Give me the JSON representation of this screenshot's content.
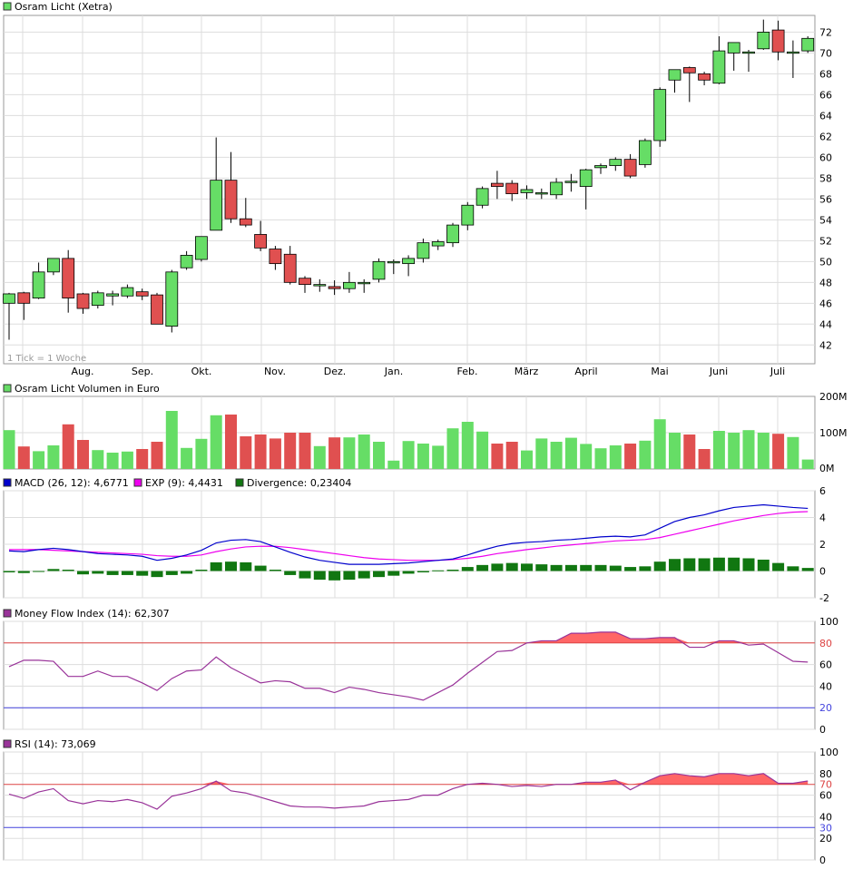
{
  "colors": {
    "up": "#66dd66",
    "down": "#e05050",
    "grid": "#dddddd",
    "macd": "#0000cc",
    "exp": "#ee00ee",
    "divergence": "#117711",
    "indicator_line": "#993399",
    "over": "#ff6666",
    "upper_line": "#dd4444",
    "lower_line": "#4444dd"
  },
  "x_ticks": [
    "Aug.",
    "Sep.",
    "Okt.",
    "Nov.",
    "Dez.",
    "Jan.",
    "Feb.",
    "März",
    "April",
    "Mai",
    "Juni",
    "Juli"
  ],
  "price_panel": {
    "title": "Osram Licht (Xetra)",
    "note": "1 Tick = 1 Woche",
    "y_ticks": [
      42,
      44,
      46,
      48,
      50,
      52,
      54,
      56,
      58,
      60,
      62,
      64,
      66,
      68,
      70,
      72
    ],
    "ylim": [
      40.2,
      73.6
    ]
  },
  "volume_panel": {
    "title": "Osram Licht Volumen in Euro",
    "y_ticks": [
      "0M",
      "100M",
      "200M"
    ],
    "ylim": [
      0,
      200
    ]
  },
  "macd_panel": {
    "legend": {
      "macd": "MACD (26, 12): 4,6771",
      "exp": "EXP (9): 4,4431",
      "divergence": "Divergence: 0,23404"
    },
    "y_ticks": [
      "-2",
      "0",
      "2",
      "4",
      "6"
    ],
    "ylim": [
      -2,
      6
    ]
  },
  "mfi_panel": {
    "title": "Money Flow Index (14): 62,307",
    "y_ticks": [
      "0",
      "20",
      "40",
      "60",
      "80",
      "100"
    ],
    "upper_label": "80",
    "lower_label": "20",
    "upper": 80,
    "lower": 20,
    "ylim": [
      0,
      100
    ]
  },
  "rsi_panel": {
    "title": "RSI (14): 73,069",
    "y_ticks": [
      "0",
      "20",
      "40",
      "60",
      "80",
      "100"
    ],
    "upper_label": "70",
    "lower_label": "30",
    "upper": 70,
    "lower": 30,
    "ylim": [
      0,
      100
    ]
  },
  "chart_data": {
    "type": "candlestick",
    "title": "Osram Licht (Xetra)",
    "interval": "1 Tick = 1 Woche",
    "candles": [
      {
        "o": 46.0,
        "h": 47.0,
        "l": 42.5,
        "c": 46.9
      },
      {
        "o": 47.0,
        "h": 47.1,
        "l": 44.4,
        "c": 46.0
      },
      {
        "o": 46.5,
        "h": 49.9,
        "l": 46.4,
        "c": 49.0
      },
      {
        "o": 49.0,
        "h": 50.3,
        "l": 48.7,
        "c": 50.3
      },
      {
        "o": 50.3,
        "h": 51.1,
        "l": 45.1,
        "c": 46.5
      },
      {
        "o": 46.9,
        "h": 47.0,
        "l": 45.0,
        "c": 45.5
      },
      {
        "o": 45.8,
        "h": 47.2,
        "l": 45.5,
        "c": 47.0
      },
      {
        "o": 46.7,
        "h": 47.2,
        "l": 45.8,
        "c": 46.9
      },
      {
        "o": 46.7,
        "h": 47.8,
        "l": 46.5,
        "c": 47.5
      },
      {
        "o": 47.1,
        "h": 47.4,
        "l": 46.3,
        "c": 46.7
      },
      {
        "o": 46.8,
        "h": 47.0,
        "l": 44.0,
        "c": 44.0
      },
      {
        "o": 43.8,
        "h": 49.2,
        "l": 43.2,
        "c": 49.0
      },
      {
        "o": 49.4,
        "h": 51.0,
        "l": 49.2,
        "c": 50.6
      },
      {
        "o": 50.2,
        "h": 52.4,
        "l": 50.0,
        "c": 52.4
      },
      {
        "o": 53.0,
        "h": 61.9,
        "l": 53.0,
        "c": 57.8
      },
      {
        "o": 57.8,
        "h": 60.5,
        "l": 53.7,
        "c": 54.1
      },
      {
        "o": 54.1,
        "h": 56.1,
        "l": 53.3,
        "c": 53.5
      },
      {
        "o": 52.6,
        "h": 53.9,
        "l": 51.0,
        "c": 51.3
      },
      {
        "o": 51.2,
        "h": 51.5,
        "l": 49.2,
        "c": 49.8
      },
      {
        "o": 50.7,
        "h": 51.5,
        "l": 47.8,
        "c": 48.0
      },
      {
        "o": 48.4,
        "h": 48.6,
        "l": 47.0,
        "c": 47.8
      },
      {
        "o": 47.8,
        "h": 48.3,
        "l": 47.1,
        "c": 47.8
      },
      {
        "o": 47.6,
        "h": 48.2,
        "l": 46.8,
        "c": 47.4
      },
      {
        "o": 47.4,
        "h": 49.0,
        "l": 47.0,
        "c": 48.0
      },
      {
        "o": 47.9,
        "h": 48.3,
        "l": 47.0,
        "c": 48.0
      },
      {
        "o": 48.3,
        "h": 50.3,
        "l": 48.0,
        "c": 50.0
      },
      {
        "o": 49.9,
        "h": 50.2,
        "l": 48.8,
        "c": 50.0
      },
      {
        "o": 49.8,
        "h": 50.6,
        "l": 48.6,
        "c": 50.3
      },
      {
        "o": 50.3,
        "h": 52.2,
        "l": 49.9,
        "c": 51.8
      },
      {
        "o": 51.5,
        "h": 52.1,
        "l": 51.1,
        "c": 51.9
      },
      {
        "o": 51.8,
        "h": 53.7,
        "l": 51.4,
        "c": 53.5
      },
      {
        "o": 53.5,
        "h": 55.7,
        "l": 53.0,
        "c": 55.4
      },
      {
        "o": 55.4,
        "h": 57.2,
        "l": 55.1,
        "c": 57.0
      },
      {
        "o": 57.5,
        "h": 58.7,
        "l": 56.0,
        "c": 57.2
      },
      {
        "o": 57.5,
        "h": 57.8,
        "l": 55.8,
        "c": 56.5
      },
      {
        "o": 56.6,
        "h": 57.3,
        "l": 56.0,
        "c": 56.9
      },
      {
        "o": 56.6,
        "h": 57.0,
        "l": 56.0,
        "c": 56.6
      },
      {
        "o": 56.4,
        "h": 58.0,
        "l": 56.0,
        "c": 57.6
      },
      {
        "o": 57.6,
        "h": 58.4,
        "l": 56.7,
        "c": 57.7
      },
      {
        "o": 57.2,
        "h": 58.9,
        "l": 55.0,
        "c": 58.8
      },
      {
        "o": 59.0,
        "h": 59.4,
        "l": 58.4,
        "c": 59.2
      },
      {
        "o": 59.2,
        "h": 60.0,
        "l": 58.7,
        "c": 59.8
      },
      {
        "o": 59.8,
        "h": 60.3,
        "l": 58.0,
        "c": 58.2
      },
      {
        "o": 59.3,
        "h": 61.8,
        "l": 59.0,
        "c": 61.6
      },
      {
        "o": 61.6,
        "h": 66.7,
        "l": 61.0,
        "c": 66.5
      },
      {
        "o": 67.4,
        "h": 68.4,
        "l": 66.2,
        "c": 68.4
      },
      {
        "o": 68.6,
        "h": 68.7,
        "l": 65.3,
        "c": 68.1
      },
      {
        "o": 68.0,
        "h": 68.2,
        "l": 66.9,
        "c": 67.4
      },
      {
        "o": 67.1,
        "h": 71.6,
        "l": 67.0,
        "c": 70.2
      },
      {
        "o": 70.0,
        "h": 71.0,
        "l": 68.3,
        "c": 71.0
      },
      {
        "o": 70.0,
        "h": 70.3,
        "l": 68.2,
        "c": 70.1
      },
      {
        "o": 70.4,
        "h": 73.2,
        "l": 70.3,
        "c": 72.0
      },
      {
        "o": 72.2,
        "h": 73.1,
        "l": 69.3,
        "c": 70.1
      },
      {
        "o": 70.1,
        "h": 71.2,
        "l": 67.6,
        "c": 70.1
      },
      {
        "o": 70.2,
        "h": 71.6,
        "l": 70.0,
        "c": 71.4
      }
    ],
    "volume_millions": [
      107,
      62,
      49,
      65,
      123,
      80,
      52,
      45,
      48,
      55,
      75,
      160,
      58,
      83,
      148,
      150,
      90,
      95,
      84,
      100,
      100,
      63,
      87,
      87,
      95,
      75,
      23,
      77,
      70,
      64,
      112,
      130,
      103,
      70,
      75,
      51,
      84,
      75,
      86,
      69,
      57,
      65,
      70,
      78,
      137,
      100,
      95,
      55,
      105,
      100,
      107,
      100,
      97,
      88,
      26
    ],
    "macd": [
      1.5,
      1.45,
      1.6,
      1.7,
      1.6,
      1.45,
      1.3,
      1.25,
      1.2,
      1.1,
      0.8,
      0.95,
      1.2,
      1.55,
      2.1,
      2.3,
      2.35,
      2.2,
      1.8,
      1.4,
      1.05,
      0.8,
      0.65,
      0.5,
      0.5,
      0.5,
      0.55,
      0.6,
      0.7,
      0.8,
      0.9,
      1.2,
      1.55,
      1.85,
      2.05,
      2.15,
      2.2,
      2.3,
      2.35,
      2.45,
      2.55,
      2.6,
      2.55,
      2.7,
      3.2,
      3.7,
      4.0,
      4.2,
      4.5,
      4.75,
      4.85,
      4.95,
      4.85,
      4.75,
      4.68
    ],
    "exp": [
      1.6,
      1.6,
      1.6,
      1.55,
      1.5,
      1.45,
      1.4,
      1.35,
      1.3,
      1.25,
      1.15,
      1.1,
      1.1,
      1.2,
      1.45,
      1.65,
      1.8,
      1.85,
      1.85,
      1.75,
      1.6,
      1.45,
      1.3,
      1.15,
      1.0,
      0.9,
      0.85,
      0.8,
      0.8,
      0.8,
      0.85,
      0.95,
      1.1,
      1.3,
      1.45,
      1.6,
      1.72,
      1.85,
      1.95,
      2.05,
      2.15,
      2.25,
      2.3,
      2.35,
      2.5,
      2.75,
      3.0,
      3.25,
      3.5,
      3.75,
      3.95,
      4.15,
      4.3,
      4.4,
      4.44
    ],
    "divergence": [
      -0.1,
      -0.15,
      -0.05,
      0.15,
      0.1,
      -0.25,
      -0.2,
      -0.3,
      -0.3,
      -0.35,
      -0.45,
      -0.3,
      -0.2,
      0.1,
      0.65,
      0.7,
      0.65,
      0.4,
      0.1,
      -0.3,
      -0.55,
      -0.65,
      -0.7,
      -0.65,
      -0.55,
      -0.45,
      -0.35,
      -0.2,
      -0.1,
      0.05,
      0.1,
      0.3,
      0.45,
      0.55,
      0.6,
      0.55,
      0.5,
      0.45,
      0.45,
      0.45,
      0.45,
      0.4,
      0.3,
      0.35,
      0.7,
      0.9,
      0.95,
      0.95,
      1.0,
      1.0,
      0.95,
      0.85,
      0.6,
      0.35,
      0.23
    ],
    "mfi": [
      58,
      64,
      64,
      63,
      49,
      49,
      54,
      49,
      49,
      43,
      36,
      47,
      54,
      55,
      67,
      57,
      50,
      43,
      45,
      44,
      38,
      38,
      34,
      39,
      37,
      34,
      32,
      30,
      27,
      34,
      41,
      52,
      62,
      72,
      73,
      80,
      82,
      82,
      89,
      89,
      90,
      90,
      84,
      84,
      85,
      85,
      76,
      76,
      82,
      82,
      78,
      79,
      71,
      63,
      62.3
    ],
    "rsi": [
      61,
      57,
      63,
      66,
      55,
      52,
      55,
      54,
      56,
      53,
      47,
      59,
      62,
      66,
      73,
      64,
      62,
      58,
      54,
      50,
      49,
      49,
      48,
      49,
      50,
      54,
      55,
      56,
      60,
      60,
      66,
      70,
      71,
      70,
      68,
      69,
      68,
      70,
      70,
      72,
      72,
      74,
      65,
      72,
      78,
      80,
      78,
      77,
      80,
      80,
      78,
      80,
      71,
      71,
      73.1
    ]
  }
}
